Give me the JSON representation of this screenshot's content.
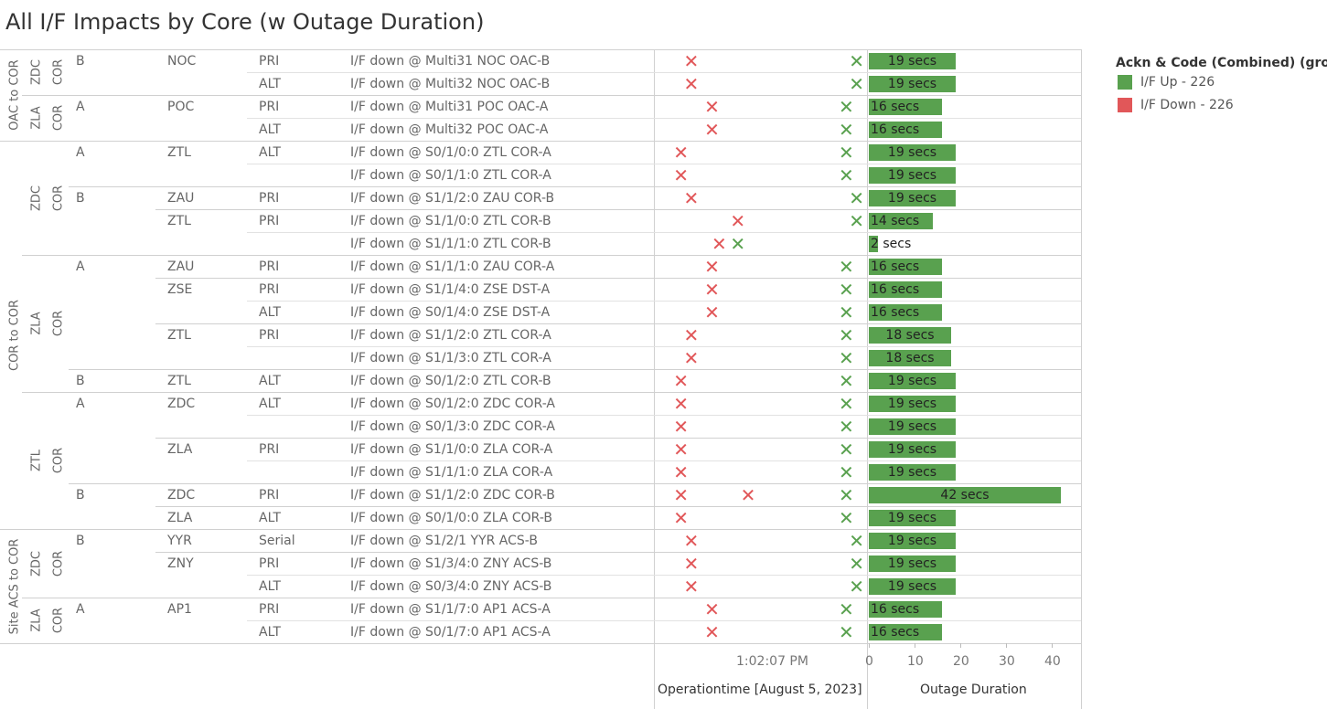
{
  "title": "All I/F Impacts by Core (w Outage Duration)",
  "legend": {
    "title": "Ackn & Code (Combined) (group)",
    "items": [
      {
        "label": "I/F Up - 226",
        "color": "#59a14f"
      },
      {
        "label": "I/F Down - 226",
        "color": "#e15759"
      }
    ]
  },
  "chart_data": {
    "type": "table",
    "time_axis": {
      "title": "Operationtime [August 5, 2023]",
      "tick_labels": [
        "1:02:07 PM"
      ]
    },
    "duration_axis": {
      "title": "Outage Duration",
      "ticks": [
        0,
        10,
        20,
        30,
        40
      ],
      "range": [
        0,
        45
      ],
      "unit_label": "secs"
    },
    "groups": [
      {
        "label": "OAC to COR",
        "cores": [
          {
            "label": "ZDC",
            "sub": "COR",
            "sides": [
              {
                "label": "B",
                "sites": [
                  {
                    "label": "NOC",
                    "rows": [
                      0,
                      1
                    ]
                  }
                ]
              }
            ]
          },
          {
            "label": "ZLA",
            "sub": "COR",
            "sides": [
              {
                "label": "A",
                "sites": [
                  {
                    "label": "POC",
                    "rows": [
                      2,
                      3
                    ]
                  }
                ]
              }
            ]
          }
        ]
      },
      {
        "label": "COR to COR",
        "cores": [
          {
            "label": "ZDC",
            "sub": "COR",
            "sides": [
              {
                "label": "A",
                "sites": [
                  {
                    "label": "ZTL",
                    "rows": [
                      4,
                      5
                    ]
                  }
                ]
              },
              {
                "label": "B",
                "sites": [
                  {
                    "label": "ZAU",
                    "rows": [
                      6
                    ]
                  },
                  {
                    "label": "ZTL",
                    "rows": [
                      7,
                      8
                    ]
                  }
                ]
              }
            ]
          },
          {
            "label": "ZLA",
            "sub": "COR",
            "sides": [
              {
                "label": "A",
                "sites": [
                  {
                    "label": "ZAU",
                    "rows": [
                      9
                    ]
                  },
                  {
                    "label": "ZSE",
                    "rows": [
                      10,
                      11
                    ]
                  },
                  {
                    "label": "ZTL",
                    "rows": [
                      12,
                      13
                    ]
                  }
                ]
              },
              {
                "label": "B",
                "sites": [
                  {
                    "label": "ZTL",
                    "rows": [
                      14
                    ]
                  }
                ]
              }
            ]
          },
          {
            "label": "ZTL",
            "sub": "COR",
            "sides": [
              {
                "label": "A",
                "sites": [
                  {
                    "label": "ZDC",
                    "rows": [
                      15,
                      16
                    ]
                  },
                  {
                    "label": "ZLA",
                    "rows": [
                      17,
                      18
                    ]
                  }
                ]
              },
              {
                "label": "B",
                "sites": [
                  {
                    "label": "ZDC",
                    "rows": [
                      19
                    ]
                  },
                  {
                    "label": "ZLA",
                    "rows": [
                      20
                    ]
                  }
                ]
              }
            ]
          }
        ]
      },
      {
        "label": "Site ACS to COR",
        "cores": [
          {
            "label": "ZDC",
            "sub": "COR",
            "sides": [
              {
                "label": "B",
                "sites": [
                  {
                    "label": "YYR",
                    "rows": [
                      21
                    ]
                  },
                  {
                    "label": "ZNY",
                    "rows": [
                      22,
                      23
                    ]
                  }
                ]
              }
            ]
          },
          {
            "label": "ZLA",
            "sub": "COR",
            "sides": [
              {
                "label": "A",
                "sites": [
                  {
                    "label": "AP1",
                    "rows": [
                      24,
                      25
                    ]
                  }
                ]
              }
            ]
          }
        ]
      }
    ],
    "rows": [
      {
        "path": "PRI",
        "show_path": true,
        "desc": "I/F down @ Multi31 NOC OAC-B",
        "down": [
          3
        ],
        "up": [
          19
        ],
        "duration": 19
      },
      {
        "path": "ALT",
        "show_path": true,
        "desc": "I/F down @ Multi32 NOC OAC-B",
        "down": [
          3
        ],
        "up": [
          19
        ],
        "duration": 19
      },
      {
        "path": "PRI",
        "show_path": true,
        "desc": "I/F down @ Multi31 POC OAC-A",
        "down": [
          5
        ],
        "up": [
          18
        ],
        "duration": 16
      },
      {
        "path": "ALT",
        "show_path": true,
        "desc": "I/F down @ Multi32 POC OAC-A",
        "down": [
          5
        ],
        "up": [
          18
        ],
        "duration": 16
      },
      {
        "path": "ALT",
        "show_path": true,
        "desc": "I/F down @ S0/1/0:0 ZTL COR-A",
        "down": [
          2
        ],
        "up": [
          18
        ],
        "duration": 19
      },
      {
        "path": "ALT",
        "show_path": false,
        "desc": "I/F down @ S0/1/1:0 ZTL COR-A",
        "down": [
          2
        ],
        "up": [
          18
        ],
        "duration": 19
      },
      {
        "path": "PRI",
        "show_path": true,
        "desc": "I/F down @ S1/1/2:0 ZAU COR-B",
        "down": [
          3
        ],
        "up": [
          19
        ],
        "duration": 19
      },
      {
        "path": "PRI",
        "show_path": true,
        "desc": "I/F down @ S1/1/0:0 ZTL COR-B",
        "down": [
          7.5
        ],
        "up": [
          19
        ],
        "duration": 14
      },
      {
        "path": "PRI",
        "show_path": false,
        "desc": "I/F down @ S1/1/1:0 ZTL COR-B",
        "down": [
          5.7
        ],
        "up": [
          7.5
        ],
        "duration": 2
      },
      {
        "path": "PRI",
        "show_path": true,
        "desc": "I/F down @ S1/1/1:0 ZAU COR-A",
        "down": [
          5
        ],
        "up": [
          18
        ],
        "duration": 16
      },
      {
        "path": "PRI",
        "show_path": true,
        "desc": "I/F down @ S1/1/4:0 ZSE DST-A",
        "down": [
          5
        ],
        "up": [
          18
        ],
        "duration": 16
      },
      {
        "path": "ALT",
        "show_path": true,
        "desc": "I/F down @ S0/1/4:0 ZSE DST-A",
        "down": [
          5
        ],
        "up": [
          18
        ],
        "duration": 16
      },
      {
        "path": "PRI",
        "show_path": true,
        "desc": "I/F down @ S1/1/2:0 ZTL COR-A",
        "down": [
          3
        ],
        "up": [
          18
        ],
        "duration": 18
      },
      {
        "path": "PRI",
        "show_path": false,
        "desc": "I/F down @ S1/1/3:0 ZTL COR-A",
        "down": [
          3
        ],
        "up": [
          18
        ],
        "duration": 18
      },
      {
        "path": "ALT",
        "show_path": true,
        "desc": "I/F down @ S0/1/2:0 ZTL COR-B",
        "down": [
          2
        ],
        "up": [
          18
        ],
        "duration": 19
      },
      {
        "path": "ALT",
        "show_path": true,
        "desc": "I/F down @ S0/1/2:0 ZDC COR-A",
        "down": [
          2
        ],
        "up": [
          18
        ],
        "duration": 19
      },
      {
        "path": "ALT",
        "show_path": false,
        "desc": "I/F down @ S0/1/3:0 ZDC COR-A",
        "down": [
          2
        ],
        "up": [
          18
        ],
        "duration": 19
      },
      {
        "path": "PRI",
        "show_path": true,
        "desc": "I/F down @ S1/1/0:0 ZLA COR-A",
        "down": [
          2
        ],
        "up": [
          18
        ],
        "duration": 19
      },
      {
        "path": "PRI",
        "show_path": false,
        "desc": "I/F down @ S1/1/1:0 ZLA COR-A",
        "down": [
          2
        ],
        "up": [
          18
        ],
        "duration": 19
      },
      {
        "path": "PRI",
        "show_path": true,
        "desc": "I/F down @ S1/1/2:0 ZDC COR-B",
        "down": [
          2,
          8.5
        ],
        "up": [
          18,
          28
        ],
        "duration": 42
      },
      {
        "path": "ALT",
        "show_path": true,
        "desc": "I/F down @ S0/1/0:0 ZLA COR-B",
        "down": [
          2
        ],
        "up": [
          18
        ],
        "duration": 19
      },
      {
        "path": "Serial",
        "show_path": true,
        "desc": "I/F down @ S1/2/1 YYR ACS-B",
        "down": [
          3
        ],
        "up": [
          19
        ],
        "duration": 19
      },
      {
        "path": "PRI",
        "show_path": true,
        "desc": "I/F down @ S1/3/4:0 ZNY ACS-B",
        "down": [
          3
        ],
        "up": [
          19
        ],
        "duration": 19
      },
      {
        "path": "ALT",
        "show_path": true,
        "desc": "I/F down @ S0/3/4:0 ZNY ACS-B",
        "down": [
          3
        ],
        "up": [
          19
        ],
        "duration": 19
      },
      {
        "path": "PRI",
        "show_path": true,
        "desc": "I/F down @ S1/1/7:0 AP1 ACS-A",
        "down": [
          5
        ],
        "up": [
          18
        ],
        "duration": 16
      },
      {
        "path": "ALT",
        "show_path": true,
        "desc": "I/F down @ S0/1/7:0 AP1 ACS-A",
        "down": [
          5
        ],
        "up": [
          18
        ],
        "duration": 16
      }
    ]
  }
}
